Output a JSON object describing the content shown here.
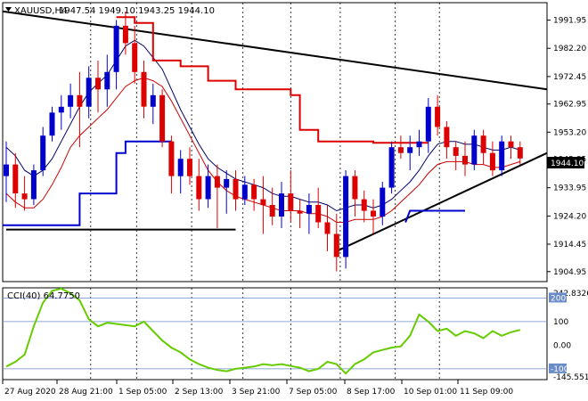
{
  "chart_data": [
    {
      "type": "candlestick",
      "title": "XAUUSD,H4",
      "ohlc_label": "1947.54 1949.10 1943.25 1944.10",
      "last_price": "1944.10",
      "ylim": [
        1901.5,
        1998.0
      ],
      "y_ticks": [
        "1991.95",
        "1982.20",
        "1972.45",
        "1962.95",
        "1953.20",
        "1943.85",
        "1933.95",
        "1924.20",
        "1914.45",
        "1904.95"
      ],
      "x_ticks": [
        "27 Aug 2020",
        "28 Aug 21:00",
        "1 Sep 05:00",
        "2 Sep 13:00",
        "3 Sep 21:00",
        "7 Sep 05:00",
        "8 Sep 17:00",
        "10 Sep 01:00",
        "11 Sep 09:00"
      ],
      "colors": {
        "bull": "#0000cc",
        "bear": "#dd0000",
        "ma_fast": "#000066",
        "ma_slow": "#cc0000",
        "trend": "#000000",
        "red_step": "#dd0000",
        "blue_step": "#0000cc",
        "grid": "#000000",
        "label_bg": "#000000"
      },
      "candles": [
        [
          1938,
          1950,
          1929,
          1942
        ],
        [
          1942,
          1946,
          1927,
          1932
        ],
        [
          1932,
          1938,
          1926,
          1930
        ],
        [
          1930,
          1942,
          1928,
          1940
        ],
        [
          1940,
          1955,
          1938,
          1952
        ],
        [
          1952,
          1962,
          1950,
          1960
        ],
        [
          1960,
          1966,
          1954,
          1962
        ],
        [
          1962,
          1970,
          1958,
          1966
        ],
        [
          1966,
          1974,
          1948,
          1962
        ],
        [
          1962,
          1976,
          1958,
          1972
        ],
        [
          1972,
          1978,
          1960,
          1968
        ],
        [
          1968,
          1980,
          1962,
          1974
        ],
        [
          1974,
          1992,
          1968,
          1990
        ],
        [
          1990,
          1995,
          1980,
          1984
        ],
        [
          1984,
          1990,
          1970,
          1974
        ],
        [
          1974,
          1978,
          1958,
          1962
        ],
        [
          1962,
          1970,
          1956,
          1966
        ],
        [
          1966,
          1968,
          1948,
          1950
        ],
        [
          1950,
          1952,
          1932,
          1938
        ],
        [
          1938,
          1947,
          1932,
          1944
        ],
        [
          1944,
          1948,
          1935,
          1938
        ],
        [
          1938,
          1944,
          1926,
          1930
        ],
        [
          1930,
          1942,
          1927,
          1938
        ],
        [
          1938,
          1942,
          1920,
          1934
        ],
        [
          1934,
          1940,
          1925,
          1937
        ],
        [
          1937,
          1940,
          1926,
          1930
        ],
        [
          1930,
          1938,
          1928,
          1935
        ],
        [
          1935,
          1937,
          1926,
          1930
        ],
        [
          1930,
          1938,
          1918,
          1928
        ],
        [
          1928,
          1934,
          1921,
          1924
        ],
        [
          1924,
          1936,
          1920,
          1932
        ],
        [
          1932,
          1940,
          1922,
          1926
        ],
        [
          1926,
          1930,
          1920,
          1925
        ],
        [
          1925,
          1932,
          1918,
          1928
        ],
        [
          1928,
          1934,
          1920,
          1922
        ],
        [
          1922,
          1928,
          1912,
          1918
        ],
        [
          1918,
          1925,
          1905,
          1910
        ],
        [
          1910,
          1940,
          1906,
          1938
        ],
        [
          1938,
          1940,
          1924,
          1930
        ],
        [
          1930,
          1933,
          1922,
          1926
        ],
        [
          1926,
          1930,
          1918,
          1924
        ],
        [
          1924,
          1936,
          1921,
          1934
        ],
        [
          1934,
          1950,
          1932,
          1948
        ],
        [
          1948,
          1952,
          1944,
          1946
        ],
        [
          1946,
          1952,
          1940,
          1948
        ],
        [
          1948,
          1954,
          1945,
          1950
        ],
        [
          1950,
          1965,
          1946,
          1962
        ],
        [
          1962,
          1966,
          1952,
          1955
        ],
        [
          1955,
          1957,
          1944,
          1948
        ],
        [
          1948,
          1950,
          1940,
          1945
        ],
        [
          1945,
          1950,
          1938,
          1942
        ],
        [
          1942,
          1954,
          1940,
          1952
        ],
        [
          1952,
          1954,
          1942,
          1946
        ],
        [
          1946,
          1950,
          1938,
          1940
        ],
        [
          1940,
          1952,
          1938,
          1950
        ],
        [
          1950,
          1952,
          1944,
          1948
        ],
        [
          1948,
          1950,
          1942,
          1944.1
        ]
      ],
      "ma_fast": [
        1948,
        1945,
        1940,
        1938,
        1940,
        1944,
        1950,
        1956,
        1962,
        1967,
        1970,
        1973,
        1978,
        1983,
        1985,
        1983,
        1979,
        1975,
        1968,
        1961,
        1955,
        1949,
        1944,
        1941,
        1939,
        1937,
        1936,
        1935,
        1934,
        1932,
        1931,
        1931,
        1930,
        1929,
        1929,
        1928,
        1926,
        1927,
        1928,
        1928,
        1927,
        1928,
        1930,
        1933,
        1936,
        1940,
        1945,
        1949,
        1950,
        1950,
        1949,
        1949,
        1948,
        1947,
        1947,
        1948,
        1947
      ],
      "ma_slow": [
        1932,
        1929,
        1927,
        1927,
        1930,
        1935,
        1941,
        1948,
        1952,
        1955,
        1958,
        1961,
        1965,
        1969,
        1971,
        1972,
        1971,
        1969,
        1964,
        1958,
        1952,
        1946,
        1940,
        1936,
        1933,
        1931,
        1930,
        1929,
        1928,
        1927,
        1926,
        1926,
        1926,
        1925,
        1925,
        1924,
        1922,
        1922,
        1923,
        1923,
        1923,
        1924,
        1926,
        1929,
        1932,
        1935,
        1939,
        1942,
        1943,
        1943,
        1943,
        1942,
        1942,
        1941,
        1941,
        1942,
        1943
      ],
      "red_step_levels": [
        [
          12,
          14,
          1993
        ],
        [
          14,
          16,
          1991
        ],
        [
          16,
          19,
          1978
        ],
        [
          19,
          22,
          1976
        ],
        [
          22,
          25,
          1971
        ],
        [
          25,
          31,
          1968
        ],
        [
          31,
          32,
          1966
        ],
        [
          32,
          34,
          1954
        ],
        [
          34,
          40,
          1950
        ],
        [
          40,
          46,
          1949.5
        ]
      ],
      "blue_step_levels": [
        [
          0,
          8,
          1921
        ],
        [
          8,
          12,
          1932
        ],
        [
          12,
          13,
          1946
        ],
        [
          13,
          18,
          1950
        ]
      ],
      "blue_step_late": [
        [
          43.5,
          1922
        ],
        [
          44,
          1926
        ],
        [
          50,
          1926
        ]
      ],
      "black_flat_line": [
        [
          0,
          1919.5
        ],
        [
          25,
          1919.5
        ]
      ],
      "trend_lines": [
        {
          "name": "upper resistance",
          "from": [
            0,
            1995
          ],
          "to": [
            57,
            1968
          ]
        },
        {
          "name": "lower support",
          "from": [
            36,
            1912
          ],
          "to": [
            57,
            1946
          ]
        }
      ],
      "candle_time_index_dashes": [
        9.2,
        14.2,
        20.2,
        25.8,
        31,
        36.4,
        42.4,
        47.2
      ]
    },
    {
      "type": "line",
      "title": "CCI(40) 64.7750",
      "ylim": [
        -145.5517,
        242.8326
      ],
      "y_ticks": [
        "242.8326",
        "200",
        "100",
        "0.00",
        "-100",
        "-145.5517"
      ],
      "levels_boxed": [
        "200",
        "-100"
      ],
      "line_color": "#66cc00",
      "values": [
        -90,
        -70,
        -40,
        80,
        180,
        230,
        240,
        220,
        190,
        110,
        80,
        95,
        90,
        85,
        80,
        100,
        60,
        20,
        -10,
        -30,
        -60,
        -80,
        -95,
        -105,
        -110,
        -100,
        -95,
        -90,
        -80,
        -85,
        -80,
        -88,
        -95,
        -110,
        -100,
        -70,
        -80,
        -120,
        -80,
        -60,
        -30,
        -20,
        -10,
        -5,
        40,
        130,
        100,
        60,
        70,
        40,
        60,
        50,
        30,
        60,
        40,
        55,
        65
      ]
    }
  ]
}
